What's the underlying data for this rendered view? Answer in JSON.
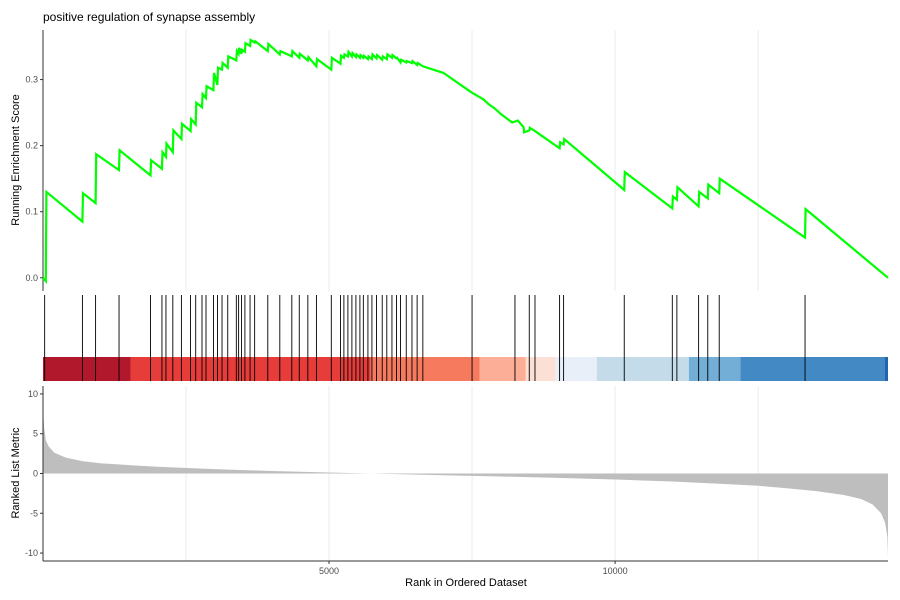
{
  "chart_data": {
    "type": "line",
    "title": "positive regulation of synapse assembly",
    "xlabel": "Rank in Ordered Dataset",
    "xlim": [
      1,
      14770
    ],
    "xticks": [
      5000,
      10000
    ],
    "xtick_labels": [
      "5000",
      "10000"
    ],
    "grid": "vertical",
    "panels": [
      {
        "panel": "running-enrichment-score",
        "ylabel": "Running Enrichment Score",
        "ylim": [
          -0.02,
          0.375
        ],
        "yticks": [
          0.0,
          0.1,
          0.2,
          0.3
        ],
        "ytick_labels": [
          "0.0",
          "0.1",
          "0.2",
          "0.3"
        ],
        "line_color": "#00FF00",
        "series": [
          {
            "x": [
              1,
              50,
              60,
              690,
              700,
              920,
              930,
              1330,
              1340,
              1880,
              1890,
              2080,
              2090,
              2150,
              2160,
              2270,
              2280,
              2420,
              2430,
              2580,
              2590,
              2670,
              2680,
              2780,
              2790,
              2850,
              2860,
              2980,
              2990,
              3050,
              3060,
              3130,
              3140,
              3230,
              3240,
              3380,
              3390,
              3420,
              3430,
              3470,
              3480,
              3530,
              3540,
              3620,
              3630,
              3700,
              3710,
              3930,
              3940,
              4140,
              4150,
              4350,
              4360,
              4480,
              4490,
              4630,
              4640,
              4780,
              4790,
              5040,
              5050,
              5200,
              5210,
              5260,
              5270,
              5330,
              5340,
              5400,
              5410,
              5470,
              5480,
              5540,
              5550,
              5600,
              5610,
              5680,
              5690,
              5750,
              5760,
              5830,
              5840,
              5930,
              5940,
              6010,
              6020,
              6100,
              6110,
              6180,
              6190,
              6250,
              6260,
              6350,
              6360,
              6450,
              6460,
              6540,
              6550,
              6640,
              7000,
              7500,
              7600,
              7700,
              7800,
              7900,
              8000,
              8200,
              8300,
              8400,
              8410,
              8500,
              8510,
              8600,
              9030,
              9040,
              9100,
              9110,
              10160,
              10170,
              11000,
              11010,
              11080,
              11090,
              11460,
              11470,
              11620,
              11630,
              11820,
              11830,
              13320,
              13330,
              14770
            ],
            "y": [
              0.0,
              -0.005,
              0.13,
              0.085,
              0.128,
              0.113,
              0.187,
              0.163,
              0.193,
              0.155,
              0.178,
              0.165,
              0.19,
              0.183,
              0.203,
              0.19,
              0.223,
              0.21,
              0.233,
              0.222,
              0.24,
              0.232,
              0.265,
              0.258,
              0.278,
              0.272,
              0.29,
              0.284,
              0.31,
              0.292,
              0.318,
              0.315,
              0.325,
              0.318,
              0.335,
              0.329,
              0.343,
              0.339,
              0.348,
              0.339,
              0.345,
              0.342,
              0.355,
              0.351,
              0.36,
              0.356,
              0.358,
              0.343,
              0.354,
              0.338,
              0.343,
              0.335,
              0.343,
              0.333,
              0.339,
              0.329,
              0.334,
              0.32,
              0.331,
              0.315,
              0.333,
              0.324,
              0.336,
              0.333,
              0.338,
              0.335,
              0.342,
              0.335,
              0.34,
              0.334,
              0.338,
              0.333,
              0.337,
              0.333,
              0.336,
              0.331,
              0.335,
              0.331,
              0.338,
              0.332,
              0.337,
              0.33,
              0.335,
              0.331,
              0.338,
              0.333,
              0.337,
              0.332,
              0.333,
              0.326,
              0.33,
              0.326,
              0.328,
              0.325,
              0.328,
              0.322,
              0.325,
              0.32,
              0.31,
              0.28,
              0.275,
              0.27,
              0.262,
              0.256,
              0.248,
              0.235,
              0.238,
              0.228,
              0.22,
              0.223,
              0.227,
              0.222,
              0.196,
              0.205,
              0.202,
              0.21,
              0.133,
              0.16,
              0.105,
              0.123,
              0.118,
              0.137,
              0.108,
              0.13,
              0.12,
              0.141,
              0.128,
              0.15,
              0.061,
              0.104,
              0.0
            ]
          }
        ]
      },
      {
        "panel": "gene-hits",
        "hit_positions": [
          30,
          690,
          920,
          1330,
          1880,
          2080,
          2150,
          2270,
          2420,
          2580,
          2670,
          2780,
          2850,
          2980,
          3050,
          3130,
          3230,
          3380,
          3420,
          3470,
          3530,
          3620,
          3700,
          3930,
          4140,
          4350,
          4480,
          4630,
          4780,
          5040,
          5200,
          5260,
          5330,
          5400,
          5470,
          5540,
          5600,
          5680,
          5750,
          5830,
          5930,
          6010,
          6100,
          6180,
          6250,
          6350,
          6450,
          6540,
          6640,
          7500,
          8250,
          8500,
          8600,
          9030,
          9100,
          10160,
          11000,
          11080,
          11460,
          11620,
          11820,
          13320
        ],
        "rank_color_bands": [
          {
            "from": 1,
            "to": 1530,
            "color": "#B2182B"
          },
          {
            "from": 1530,
            "to": 5730,
            "color": "#E63C3A"
          },
          {
            "from": 5730,
            "to": 7630,
            "color": "#F67A5E"
          },
          {
            "from": 7630,
            "to": 8440,
            "color": "#FCAE96"
          },
          {
            "from": 8440,
            "to": 8960,
            "color": "#FDE0D5"
          },
          {
            "from": 8960,
            "to": 9680,
            "color": "#E9EFF8"
          },
          {
            "from": 9680,
            "to": 11290,
            "color": "#C4DBEA"
          },
          {
            "from": 11290,
            "to": 12190,
            "color": "#72AED6"
          },
          {
            "from": 12190,
            "to": 14770,
            "color": "#4389C4"
          }
        ]
      },
      {
        "panel": "ranked-list-metric",
        "type": "area",
        "ylabel": "Ranked List Metric",
        "ylim": [
          -11,
          11
        ],
        "yticks": [
          10,
          5,
          0,
          -5,
          -10
        ],
        "ytick_labels": [
          "10",
          "5",
          "0",
          "-5",
          "-10"
        ],
        "fill_color": "#BEBEBE",
        "x": [
          1,
          20,
          50,
          100,
          200,
          400,
          700,
          1000,
          1500,
          2000,
          3000,
          4000,
          5000,
          6000,
          7000,
          8000,
          9000,
          10000,
          11000,
          12000,
          12500,
          13000,
          13500,
          14000,
          14300,
          14500,
          14650,
          14720,
          14760,
          14770
        ],
        "y": [
          8.5,
          5.8,
          4.2,
          3.4,
          2.6,
          2.0,
          1.55,
          1.3,
          1.05,
          0.85,
          0.55,
          0.32,
          0.12,
          -0.05,
          -0.22,
          -0.38,
          -0.55,
          -0.75,
          -1.0,
          -1.35,
          -1.55,
          -1.85,
          -2.2,
          -2.7,
          -3.2,
          -3.9,
          -5.0,
          -6.2,
          -8.0,
          -10.5
        ]
      }
    ]
  }
}
